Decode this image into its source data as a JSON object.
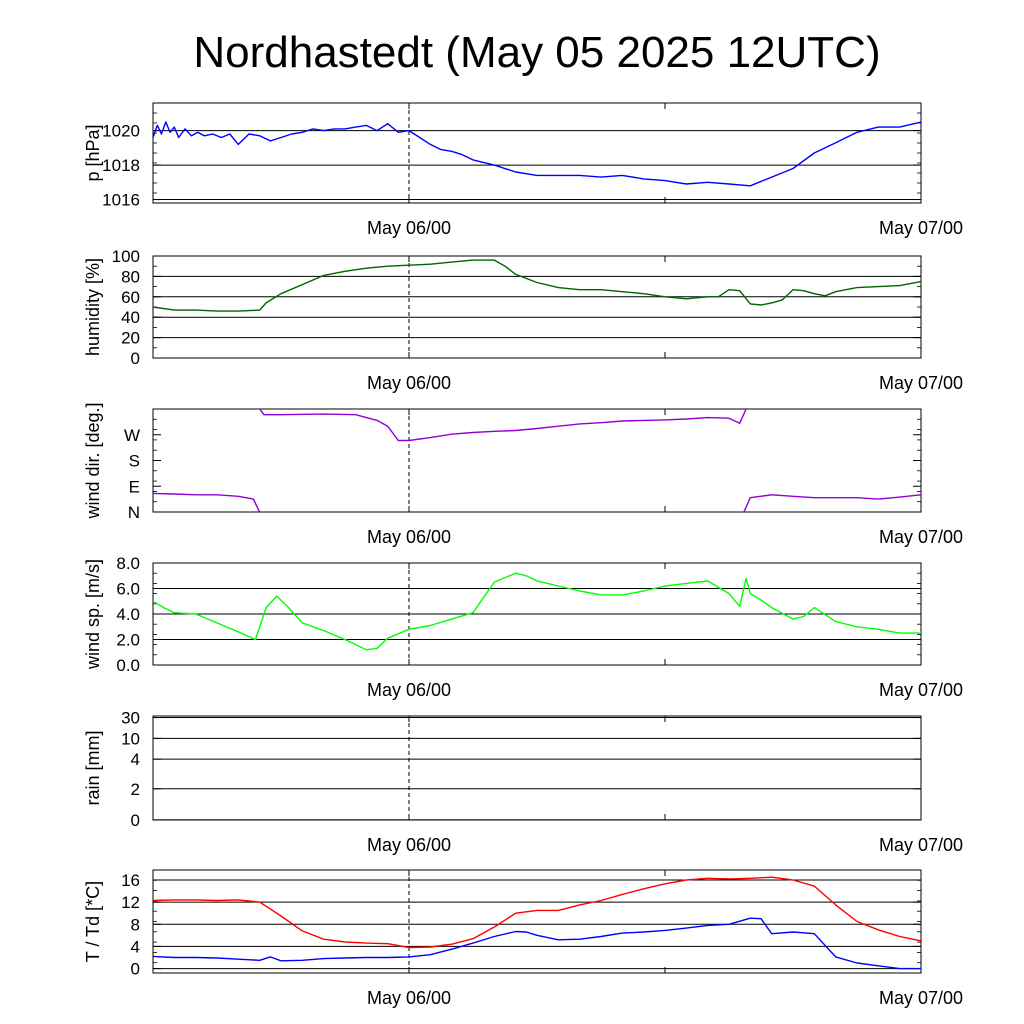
{
  "title": "Nordhastedt (May 05 2025 12UTC)",
  "x_ticks": [
    "May 06/00",
    "May 07/00"
  ],
  "chart_data": [
    {
      "type": "line",
      "ylabel": "p [hPa]",
      "ylim": [
        1015.8,
        1021.6
      ],
      "yticks": [
        1016,
        1018,
        1020
      ],
      "ytick_labels": [
        "1016",
        "1018",
        "1020"
      ],
      "gridlines": [
        1016,
        1018,
        1020
      ],
      "xlim": [
        0,
        36
      ],
      "series": [
        {
          "color": "#0000ff",
          "x": [
            0,
            0.2,
            0.4,
            0.6,
            0.8,
            1,
            1.2,
            1.5,
            1.8,
            2.1,
            2.4,
            2.8,
            3.2,
            3.6,
            4,
            4.5,
            5,
            5.5,
            6,
            6.5,
            7,
            7.5,
            8,
            8.5,
            9,
            9.5,
            10,
            10.5,
            11,
            11.5,
            12,
            12.5,
            13,
            13.5,
            14,
            14.5,
            15,
            16,
            17,
            18,
            19,
            20,
            21,
            22,
            23,
            24,
            25,
            26,
            27,
            28,
            29,
            30,
            31,
            32,
            33,
            34,
            35,
            36
          ],
          "y": [
            1019.6,
            1020.3,
            1019.8,
            1020.5,
            1019.9,
            1020.2,
            1019.6,
            1020.1,
            1019.7,
            1019.9,
            1019.7,
            1019.8,
            1019.6,
            1019.8,
            1019.2,
            1019.8,
            1019.7,
            1019.4,
            1019.6,
            1019.8,
            1019.9,
            1020.1,
            1020.0,
            1020.1,
            1020.1,
            1020.2,
            1020.3,
            1020.0,
            1020.4,
            1019.9,
            1020.0,
            1019.6,
            1019.2,
            1018.9,
            1018.8,
            1018.6,
            1018.3,
            1018.0,
            1017.6,
            1017.4,
            1017.4,
            1017.4,
            1017.3,
            1017.4,
            1017.2,
            1017.1,
            1016.9,
            1017.0,
            1016.9,
            1016.8,
            1017.3,
            1017.8,
            1018.7,
            1019.3,
            1019.9,
            1020.2,
            1020.2,
            1020.5
          ]
        }
      ]
    },
    {
      "type": "line",
      "ylabel": "humidity [%]",
      "ylim": [
        0,
        100
      ],
      "yticks": [
        0,
        20,
        40,
        60,
        80,
        100
      ],
      "ytick_labels": [
        "0",
        "20",
        "40",
        "60",
        "80",
        "100"
      ],
      "gridlines": [
        20,
        40,
        60,
        80,
        100
      ],
      "xlim": [
        0,
        36
      ],
      "series": [
        {
          "color": "#006400",
          "x": [
            0,
            1,
            2,
            3,
            4,
            5,
            5.3,
            6,
            7,
            8,
            9,
            10,
            11,
            12,
            13,
            14,
            15,
            16,
            16.5,
            17,
            18,
            19,
            20,
            21,
            22,
            23,
            24,
            25,
            26,
            26.5,
            27,
            27.5,
            28,
            28.5,
            29,
            29.5,
            30,
            30.5,
            31,
            31.5,
            32,
            33,
            34,
            35,
            36
          ],
          "y": [
            50,
            47,
            47,
            46,
            46,
            47,
            54,
            63,
            72,
            81,
            85,
            88,
            90,
            91,
            92,
            94,
            96,
            96,
            90,
            82,
            74,
            69,
            67,
            67,
            65,
            63,
            60,
            58,
            60,
            60,
            67,
            66,
            53,
            52,
            54,
            57,
            67,
            66,
            63,
            61,
            65,
            69,
            70,
            71,
            75
          ]
        }
      ]
    },
    {
      "type": "line",
      "ylabel": "wind dir. [deg.]",
      "ylim": [
        0,
        360
      ],
      "yticks": [
        0,
        90,
        180,
        270
      ],
      "ytick_labels": [
        "N",
        "E",
        "S",
        "W"
      ],
      "gridlines": [],
      "xlim": [
        0,
        36
      ],
      "series": [
        {
          "color": "#9400d3",
          "x": [
            0,
            1,
            2,
            3,
            4,
            4.7,
            5
          ],
          "y": [
            65,
            63,
            60,
            60,
            55,
            45,
            0
          ]
        },
        {
          "color": "#9400d3",
          "x": [
            5,
            5.2,
            6,
            8,
            9.5,
            10.5,
            11,
            11.5,
            12,
            13,
            14,
            15,
            16,
            17,
            18,
            19,
            20,
            21,
            22,
            23,
            24,
            25,
            26,
            27,
            27.5,
            27.8
          ],
          "y": [
            360,
            340,
            340,
            342,
            340,
            320,
            300,
            250,
            250,
            260,
            272,
            278,
            282,
            285,
            292,
            300,
            308,
            312,
            318,
            320,
            322,
            325,
            330,
            328,
            310,
            360
          ]
        },
        {
          "color": "#9400d3",
          "x": [
            27.7,
            28,
            29,
            30,
            31,
            32,
            33,
            34,
            35,
            36
          ],
          "y": [
            0,
            50,
            60,
            55,
            50,
            50,
            50,
            45,
            52,
            60
          ]
        }
      ]
    },
    {
      "type": "line",
      "ylabel": "wind sp. [m/s]",
      "ylim": [
        0,
        8
      ],
      "yticks": [
        0,
        2,
        4,
        6,
        8
      ],
      "ytick_labels": [
        "0.0",
        "2.0",
        "4.0",
        "6.0",
        "8.0"
      ],
      "gridlines": [
        2,
        4,
        6,
        8
      ],
      "xlim": [
        0,
        36
      ],
      "series": [
        {
          "color": "#00ff00",
          "x": [
            0,
            0.5,
            1,
            2,
            3,
            4,
            4.8,
            5.3,
            5.8,
            6.3,
            7,
            8,
            9,
            10,
            10.5,
            11,
            12,
            13,
            14,
            15,
            16,
            17,
            17.5,
            18,
            18.5,
            19,
            20,
            21,
            22,
            23,
            24,
            25,
            26,
            27,
            27.5,
            27.8,
            28,
            28.5,
            29,
            30,
            30.5,
            31,
            32,
            33,
            34,
            35,
            36
          ],
          "y": [
            5.0,
            4.5,
            4.1,
            4.0,
            3.3,
            2.6,
            2.0,
            4.5,
            5.4,
            4.6,
            3.3,
            2.7,
            2.0,
            1.2,
            1.3,
            2.1,
            2.8,
            3.1,
            3.6,
            4.1,
            6.5,
            7.2,
            7.0,
            6.6,
            6.4,
            6.2,
            5.8,
            5.5,
            5.5,
            5.8,
            6.2,
            6.4,
            6.6,
            5.6,
            4.6,
            6.8,
            5.6,
            5.1,
            4.5,
            3.6,
            3.8,
            4.5,
            3.4,
            3.0,
            2.8,
            2.5,
            2.5
          ]
        }
      ]
    },
    {
      "type": "line",
      "ylabel": "rain [mm]",
      "ylim": [
        0,
        31
      ],
      "yticks": [
        0,
        2,
        4,
        10,
        30
      ],
      "ytick_labels": [
        "0",
        "2",
        "4",
        "10",
        "30"
      ],
      "gridlines": [
        2,
        4,
        10,
        30
      ],
      "xlim": [
        0,
        36
      ],
      "series": [
        {
          "color": "#0000ff",
          "x": [
            0,
            36
          ],
          "y": [
            0,
            0
          ]
        }
      ]
    },
    {
      "type": "line",
      "ylabel": "T / Td [*C]",
      "ylim": [
        -0.8,
        17.8
      ],
      "yticks": [
        0,
        4,
        8,
        12,
        16
      ],
      "ytick_labels": [
        "0",
        "4",
        "8",
        "12",
        "16"
      ],
      "gridlines": [
        0,
        4,
        8,
        12,
        16
      ],
      "xlim": [
        0,
        36
      ],
      "series": [
        {
          "color": "#ff0000",
          "x": [
            0,
            1,
            2,
            3,
            4,
            5,
            6,
            7,
            8,
            9,
            10,
            11,
            12,
            13,
            14,
            15,
            16,
            17,
            18,
            19,
            20,
            21,
            22,
            23,
            24,
            25,
            26,
            27,
            28,
            29,
            30,
            31,
            32,
            33,
            34,
            35,
            36
          ],
          "y": [
            12.3,
            12.4,
            12.4,
            12.3,
            12.4,
            12.0,
            9.5,
            6.8,
            5.3,
            4.8,
            4.6,
            4.5,
            3.8,
            3.9,
            4.4,
            5.4,
            7.5,
            10.0,
            10.5,
            10.5,
            11.5,
            12.3,
            13.4,
            14.4,
            15.3,
            16.0,
            16.3,
            16.2,
            16.3,
            16.5,
            16.0,
            14.9,
            11.5,
            8.5,
            7.0,
            5.8,
            5.0
          ]
        },
        {
          "color": "#0000ff",
          "x": [
            0,
            1,
            2,
            3,
            4,
            5,
            5.5,
            6,
            7,
            8,
            9,
            10,
            11,
            12,
            13,
            14,
            15,
            16,
            17,
            17.5,
            18,
            19,
            20,
            21,
            22,
            23,
            24,
            25,
            26,
            27,
            28,
            28.5,
            29,
            30,
            31,
            32,
            33,
            34,
            35,
            36
          ],
          "y": [
            2.2,
            2.0,
            2.0,
            1.9,
            1.7,
            1.5,
            2.1,
            1.4,
            1.5,
            1.8,
            1.9,
            2.0,
            2.0,
            2.1,
            2.5,
            3.5,
            4.6,
            5.8,
            6.7,
            6.6,
            6.0,
            5.2,
            5.3,
            5.8,
            6.4,
            6.6,
            6.9,
            7.3,
            7.8,
            8.0,
            9.1,
            9.0,
            6.3,
            6.6,
            6.3,
            2.1,
            1.0,
            0.5,
            0.0,
            0.0
          ]
        }
      ]
    }
  ]
}
